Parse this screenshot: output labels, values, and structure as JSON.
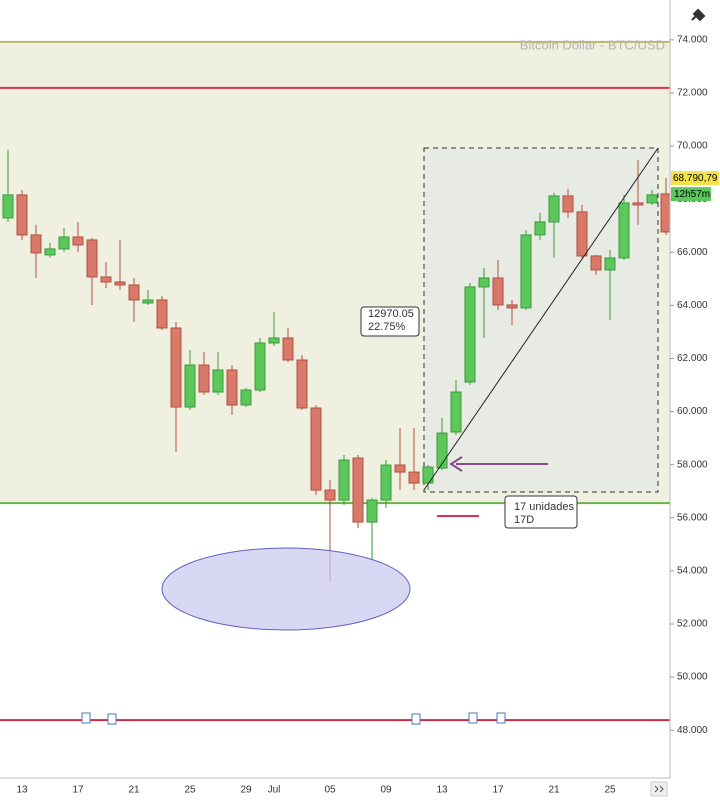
{
  "chart_data": {
    "type": "candlestick",
    "title": "Bitcoin Dollar - BTC/USD",
    "categories": [
      null,
      "13",
      null,
      null,
      null,
      "17",
      null,
      null,
      null,
      "21",
      null,
      null,
      null,
      "25",
      null,
      null,
      null,
      "29",
      null,
      "Jul",
      null,
      null,
      null,
      "05",
      null,
      null,
      null,
      "09",
      null,
      null,
      null,
      "13",
      null,
      null,
      null,
      "17",
      null,
      null,
      null,
      "21",
      null,
      null,
      null,
      "25",
      null,
      null,
      null,
      null
    ],
    "open": [
      67293,
      68160,
      66652,
      65899,
      66125,
      66577,
      66464,
      65070,
      64881,
      64768,
      64090,
      64203,
      63148,
      60171,
      61754,
      60737,
      61566,
      60247,
      60812,
      62583,
      62771,
      61942,
      60134,
      57044,
      56668,
      58250,
      55838,
      56668,
      57986,
      57722,
      57308,
      57873,
      59230,
      61114,
      64693,
      65032,
      64015,
      63902,
      66652,
      67142,
      68122,
      67519,
      65861,
      65334,
      65786,
      67858,
      67858,
      68198
    ],
    "high": [
      69855,
      68348,
      67030,
      66351,
      66916,
      67142,
      66539,
      65635,
      66464,
      65032,
      64580,
      64354,
      63374,
      62319,
      62244,
      62244,
      61754,
      60888,
      62771,
      63751,
      63148,
      62131,
      60247,
      57421,
      58363,
      58363,
      56743,
      58174,
      59380,
      59380,
      57986,
      59757,
      61189,
      64844,
      65409,
      65710,
      64203,
      66840,
      67482,
      68235,
      68386,
      67783,
      65899,
      66087,
      68160,
      69479,
      68348,
      68800
    ],
    "low": [
      67143,
      66464,
      65032,
      65786,
      66012,
      66012,
      64015,
      64655,
      64580,
      63374,
      64015,
      63073,
      58476,
      60058,
      60624,
      60624,
      59870,
      60171,
      60737,
      62470,
      61867,
      60058,
      56856,
      53578,
      56479,
      55612,
      54406,
      56366,
      57044,
      57044,
      57044,
      57798,
      59117,
      61001,
      62771,
      63826,
      63261,
      63826,
      66464,
      65786,
      67293,
      65786,
      65146,
      63450,
      65710,
      67030,
      67783,
      66652
    ],
    "close": [
      68160,
      66652,
      65974,
      66125,
      66577,
      66275,
      65070,
      64881,
      64768,
      64203,
      64203,
      63148,
      60171,
      61754,
      60737,
      61566,
      60247,
      60812,
      62583,
      62771,
      61942,
      60134,
      57044,
      56668,
      58174,
      55838,
      56668,
      57986,
      57722,
      57308,
      57911,
      59192,
      60737,
      64693,
      65032,
      64015,
      63902,
      66652,
      67142,
      68122,
      67519,
      65861,
      65334,
      65786,
      67858,
      67783,
      68160,
      66765
    ],
    "up_color": "#5cc85c",
    "down_color": "#d9796a",
    "ylim": [
      46200,
      75500
    ],
    "yticks": [
      {
        "value": 48000,
        "label": "48.000"
      },
      {
        "value": 50000,
        "label": "50.000"
      },
      {
        "value": 52000,
        "label": "52.000"
      },
      {
        "value": 54000,
        "label": "54.000"
      },
      {
        "value": 56000,
        "label": "56.000"
      },
      {
        "value": 58000,
        "label": "58.000"
      },
      {
        "value": 60000,
        "label": "60.000"
      },
      {
        "value": 62000,
        "label": "62.000"
      },
      {
        "value": 64000,
        "label": "64.000"
      },
      {
        "value": 66000,
        "label": "66.000"
      },
      {
        "value": 68000,
        "label": "68.000"
      },
      {
        "value": 70000,
        "label": "70.000"
      },
      {
        "value": 72000,
        "label": "72.000"
      },
      {
        "value": 74000,
        "label": "74.000"
      }
    ],
    "hlines": [
      {
        "value": 73925,
        "color": "#b8b870"
      },
      {
        "value": 72190,
        "color": "#e0304a"
      },
      {
        "value": 56554,
        "color": "#6ab04c"
      },
      {
        "value": 48378,
        "color": "#c0304a"
      }
    ],
    "last_price": {
      "value": 68790.79,
      "label": "68.790,79"
    },
    "countdown": "12h57m",
    "annotations": {
      "range_label": [
        "12970.05",
        "22.75%"
      ],
      "duration_label": [
        "17 unidades",
        "17D"
      ]
    }
  }
}
